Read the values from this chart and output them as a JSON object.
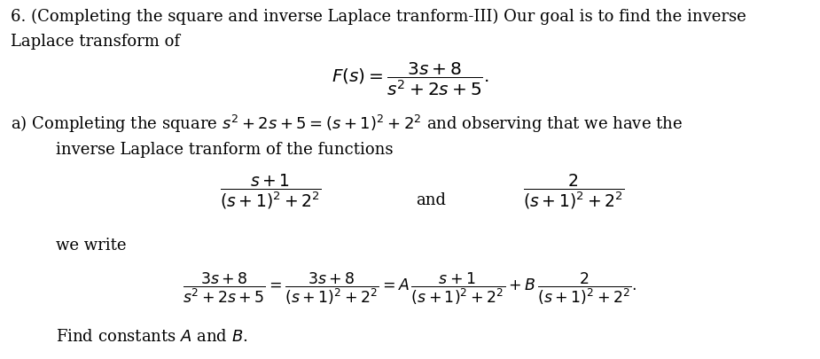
{
  "background_color": "#ffffff",
  "figsize": [
    9.25,
    4.06
  ],
  "dpi": 100,
  "text_color": "#000000",
  "line1": "6. (Completing the square and inverse Laplace tranform-III) Our goal is to find the inverse",
  "line2": "Laplace transform of",
  "fs_eq": "$\\mathit{F}(s) = \\dfrac{3s+8}{s^2+2s+5}.$",
  "line_a": "a) Completing the square $s^2 + 2s + 5 = (s+1)^2 + 2^2$ and observing that we have the",
  "line_a2": "inverse Laplace tranform of the functions",
  "frac_left": "$\\dfrac{s+1}{(s+1)^2+2^2}$",
  "frac_and": "and",
  "frac_right": "$\\dfrac{2}{(s+1)^2+2^2}$",
  "we_write": "we write",
  "big_eq": "$\\dfrac{3s+8}{s^2+2s+5} = \\dfrac{3s+8}{(s+1)^2+2^2} = A\\,\\dfrac{s+1}{(s+1)^2+2^2} + B\\,\\dfrac{2}{(s+1)^2+2^2}.$",
  "find": "Find constants $\\mathit{A}$ and $\\mathit{B}$.",
  "fontsize_text": 13.0,
  "fontsize_math": 13.5,
  "fontsize_math_small": 12.5
}
